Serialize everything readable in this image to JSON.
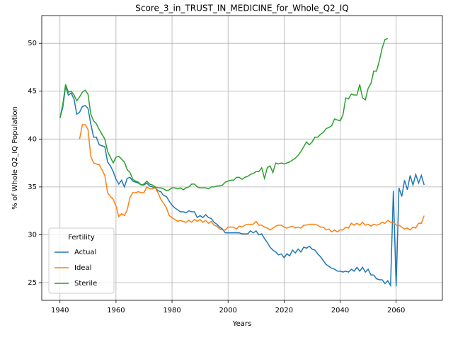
{
  "chart_data": {
    "type": "line",
    "title": "Score_3_in_TRUST_IN_MEDICINE_for_Whole_Q2_IQ",
    "x_label": "Years",
    "y_label": "% of Whole Q2_IQ Population",
    "legend_title": "Fertility",
    "legend_position": "lower left",
    "grid": true,
    "xlim": [
      1933.5,
      2076.5
    ],
    "ylim": [
      23.15,
      52.9
    ],
    "xticks": [
      1940,
      1960,
      1980,
      2000,
      2020,
      2040,
      2060
    ],
    "yticks": [
      25,
      30,
      35,
      40,
      45,
      50
    ],
    "x": [
      1940,
      1941,
      1942,
      1943,
      1944,
      1945,
      1946,
      1947,
      1948,
      1949,
      1950,
      1951,
      1952,
      1953,
      1954,
      1955,
      1956,
      1957,
      1958,
      1959,
      1960,
      1961,
      1962,
      1963,
      1964,
      1965,
      1966,
      1967,
      1968,
      1969,
      1970,
      1971,
      1972,
      1973,
      1974,
      1975,
      1976,
      1977,
      1978,
      1979,
      1980,
      1981,
      1982,
      1983,
      1984,
      1985,
      1986,
      1987,
      1988,
      1989,
      1990,
      1991,
      1992,
      1993,
      1994,
      1995,
      1996,
      1997,
      1998,
      1999,
      2000,
      2001,
      2002,
      2003,
      2004,
      2005,
      2006,
      2007,
      2008,
      2009,
      2010,
      2011,
      2012,
      2013,
      2014,
      2015,
      2016,
      2017,
      2018,
      2019,
      2020,
      2021,
      2022,
      2023,
      2024,
      2025,
      2026,
      2027,
      2028,
      2029,
      2030,
      2031,
      2032,
      2033,
      2034,
      2035,
      2036,
      2037,
      2038,
      2039,
      2040,
      2041,
      2042,
      2043,
      2044,
      2045,
      2046,
      2047,
      2048,
      2049,
      2050,
      2051,
      2052,
      2053,
      2054,
      2055,
      2056,
      2057,
      2058,
      2059,
      2060,
      2061,
      2062,
      2063,
      2064,
      2065,
      2066,
      2067,
      2068,
      2069,
      2070
    ],
    "series": [
      {
        "name": "Actual",
        "color": "#1f77b4",
        "values": [
          42.2,
          43.3,
          45.5,
          44.6,
          44.8,
          44.2,
          42.6,
          42.8,
          43.4,
          43.5,
          43.2,
          41.6,
          40.2,
          40.2,
          39.4,
          39.3,
          39.2,
          37.6,
          37.2,
          36.6,
          35.8,
          35.3,
          35.7,
          35.0,
          35.9,
          36.0,
          35.6,
          35.5,
          35.4,
          35.2,
          35.2,
          35.4,
          35.1,
          35.0,
          34.9,
          34.6,
          34.5,
          34.1,
          34.0,
          33.5,
          33.1,
          32.8,
          32.6,
          32.4,
          32.4,
          32.3,
          32.5,
          32.4,
          32.4,
          31.8,
          32.0,
          31.8,
          32.1,
          31.8,
          31.7,
          31.3,
          31.1,
          30.8,
          30.6,
          30.2,
          30.2,
          30.2,
          30.2,
          30.2,
          30.2,
          30.1,
          30.1,
          30.1,
          30.4,
          30.2,
          30.4,
          30.0,
          30.1,
          29.6,
          29.2,
          28.7,
          28.4,
          28.2,
          27.9,
          28.0,
          27.6,
          28.0,
          27.8,
          28.4,
          28.1,
          28.5,
          28.2,
          28.7,
          28.6,
          28.8,
          28.5,
          28.4,
          28.0,
          27.7,
          27.3,
          26.9,
          26.7,
          26.5,
          26.4,
          26.2,
          26.2,
          26.1,
          26.2,
          26.1,
          26.4,
          26.2,
          26.6,
          26.2,
          26.6,
          26.1,
          26.4,
          25.8,
          25.8,
          25.4,
          25.3,
          25.3,
          24.9,
          25.2,
          24.7,
          34.6,
          24.6,
          34.9,
          34.0,
          35.7,
          34.7,
          36.2,
          35.2,
          36.3,
          35.4,
          36.2,
          35.2
        ]
      },
      {
        "name": "Ideal",
        "color": "#ff7f0e",
        "values": [
          null,
          null,
          null,
          null,
          null,
          null,
          null,
          40.0,
          41.5,
          41.5,
          41.0,
          38.2,
          37.5,
          37.4,
          37.3,
          36.8,
          36.2,
          34.4,
          34.0,
          33.7,
          33.0,
          31.9,
          32.2,
          32.0,
          32.6,
          33.9,
          34.4,
          34.4,
          34.5,
          34.4,
          34.4,
          35.0,
          34.8,
          34.8,
          34.9,
          34.4,
          33.7,
          33.3,
          32.8,
          32.0,
          31.8,
          31.6,
          31.4,
          31.5,
          31.4,
          31.3,
          31.5,
          31.3,
          31.6,
          31.4,
          31.6,
          31.3,
          31.5,
          31.2,
          31.4,
          31.0,
          30.9,
          30.6,
          30.5,
          30.5,
          30.8,
          30.8,
          30.8,
          30.6,
          30.9,
          30.8,
          31.0,
          31.1,
          31.1,
          31.1,
          31.4,
          31.0,
          31.0,
          30.8,
          30.7,
          30.5,
          30.7,
          30.9,
          31.0,
          31.0,
          30.8,
          30.7,
          30.8,
          30.9,
          30.7,
          30.8,
          30.7,
          31.0,
          31.0,
          31.1,
          31.1,
          31.1,
          31.0,
          30.8,
          30.8,
          30.5,
          30.6,
          30.3,
          30.5,
          30.3,
          30.5,
          30.5,
          30.8,
          30.7,
          31.2,
          31.0,
          31.2,
          31.0,
          31.3,
          31.0,
          31.1,
          30.9,
          31.1,
          31.0,
          31.1,
          31.3,
          31.2,
          31.5,
          31.3,
          31.3,
          31.0,
          31.0,
          30.8,
          30.6,
          30.7,
          30.5,
          30.8,
          30.7,
          31.2,
          31.2,
          32.0
        ]
      },
      {
        "name": "Sterile",
        "color": "#2ca02c",
        "values": [
          42.2,
          43.6,
          45.7,
          44.9,
          45.0,
          44.6,
          44.0,
          44.4,
          44.9,
          45.1,
          44.7,
          42.6,
          41.9,
          41.6,
          41.0,
          40.5,
          40.0,
          38.7,
          38.1,
          37.5,
          38.1,
          38.2,
          37.9,
          37.6,
          36.8,
          36.5,
          35.8,
          35.6,
          35.5,
          35.2,
          35.3,
          35.6,
          35.3,
          35.2,
          35.0,
          34.9,
          34.9,
          34.8,
          34.6,
          34.7,
          34.9,
          34.9,
          34.8,
          34.9,
          34.7,
          34.9,
          35.0,
          35.3,
          35.3,
          35.0,
          34.9,
          34.9,
          34.9,
          34.8,
          35.0,
          35.0,
          35.1,
          35.1,
          35.2,
          35.5,
          35.6,
          35.7,
          35.7,
          36.0,
          36.0,
          35.8,
          36.0,
          36.1,
          36.3,
          36.4,
          36.6,
          36.6,
          37.0,
          35.9,
          37.0,
          37.2,
          36.5,
          37.5,
          37.4,
          37.5,
          37.4,
          37.5,
          37.6,
          37.8,
          38.0,
          38.3,
          38.7,
          39.2,
          39.7,
          39.4,
          39.7,
          40.2,
          40.2,
          40.5,
          40.7,
          41.1,
          41.2,
          41.4,
          42.1,
          42.0,
          41.9,
          42.5,
          44.3,
          44.2,
          44.7,
          44.6,
          44.6,
          45.7,
          44.3,
          44.1,
          45.3,
          45.8,
          47.1,
          47.1,
          48.2,
          49.5,
          50.4,
          50.5,
          null,
          null,
          null,
          null,
          null,
          null,
          null,
          null,
          null,
          null,
          null,
          null,
          null
        ]
      }
    ]
  }
}
